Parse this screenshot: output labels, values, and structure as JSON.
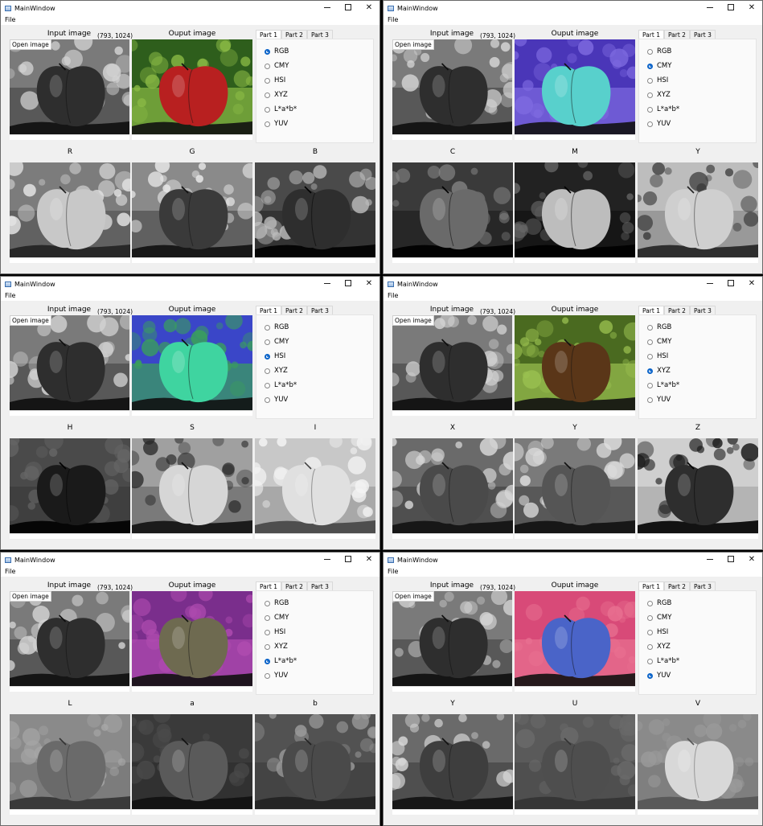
{
  "window": {
    "title": "MainWindow",
    "menu_file": "File",
    "minimize_symbol": "—",
    "close_symbol": "✕"
  },
  "labels": {
    "input_image": "Input image",
    "output_image": "Ouput image",
    "dimensions": "(793, 1024)",
    "open_image": "Open image"
  },
  "tabs": [
    "Part 1",
    "Part 2",
    "Part 3"
  ],
  "color_spaces": [
    "RGB",
    "CMY",
    "HSI",
    "XYZ",
    "L*a*b*",
    "YUV"
  ],
  "windows": [
    {
      "selected": "RGB",
      "channels": [
        "R",
        "G",
        "B"
      ],
      "output_colors": [
        "#2e5e1c",
        "#8ab945",
        "#b82020"
      ]
    },
    {
      "selected": "CMY",
      "channels": [
        "C",
        "M",
        "Y"
      ],
      "output_colors": [
        "#4a36b8",
        "#7e6ae0",
        "#58d0cc"
      ]
    },
    {
      "selected": "HSI",
      "channels": [
        "H",
        "S",
        "I"
      ],
      "output_colors": [
        "#3a46c8",
        "#3aa05a",
        "#3fd4a0"
      ]
    },
    {
      "selected": "XYZ",
      "channels": [
        "X",
        "Y",
        "Z"
      ],
      "output_colors": [
        "#4a6a20",
        "#9ac050",
        "#5a3618"
      ]
    },
    {
      "selected": "L*a*b*",
      "channels": [
        "L",
        "a",
        "b"
      ],
      "output_colors": [
        "#7a2e8c",
        "#b04cb0",
        "#6e6a50"
      ]
    },
    {
      "selected": "YUV",
      "channels": [
        "Y",
        "U",
        "V"
      ],
      "output_colors": [
        "#d84a78",
        "#e87090",
        "#4a64c8"
      ]
    }
  ]
}
